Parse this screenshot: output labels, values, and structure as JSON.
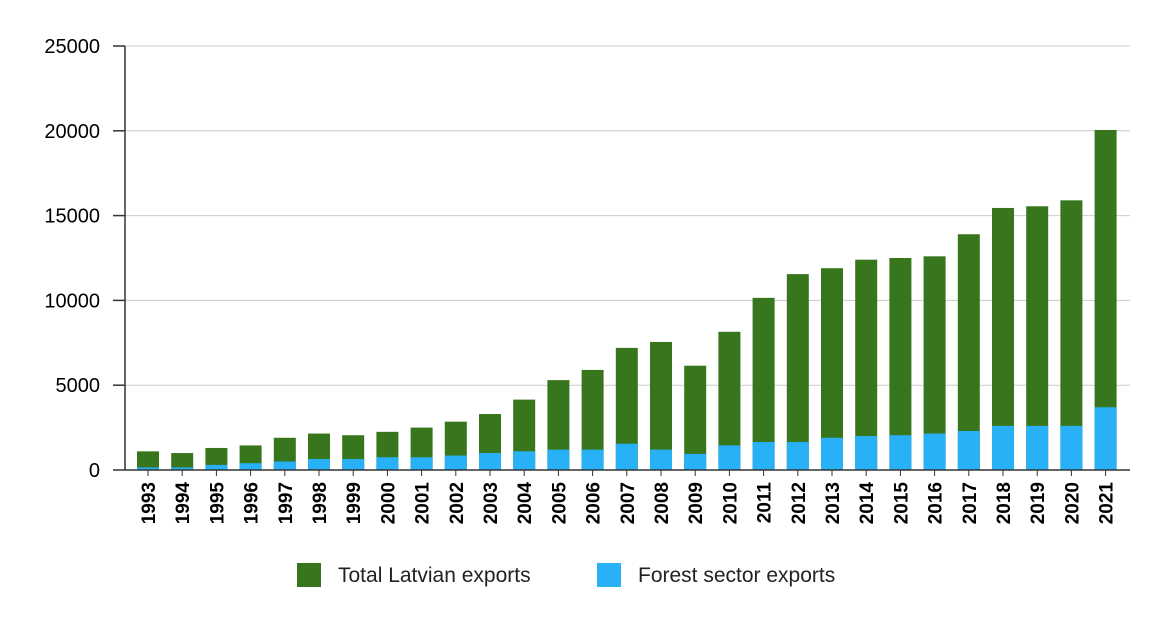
{
  "chart_data": {
    "type": "bar",
    "stacked": true,
    "title": "",
    "xlabel": "",
    "ylabel": "",
    "ylim": [
      0,
      25000
    ],
    "yticks": [
      0,
      5000,
      10000,
      15000,
      20000,
      25000
    ],
    "grid": true,
    "legend": "bottom",
    "categories": [
      "1993",
      "1994",
      "1995",
      "1996",
      "1997",
      "1998",
      "1999",
      "2000",
      "2001",
      "2002",
      "2003",
      "2004",
      "2005",
      "2006",
      "2007",
      "2008",
      "2009",
      "2010",
      "2011",
      "2012",
      "2013",
      "2014",
      "2015",
      "2016",
      "2017",
      "2018",
      "2019",
      "2020",
      "2021"
    ],
    "series": [
      {
        "name": "Total Latvian exports",
        "color": "#38761d",
        "values": [
          1100,
          1000,
          1300,
          1450,
          1900,
          2150,
          2050,
          2250,
          2500,
          2850,
          3300,
          4150,
          5300,
          5900,
          7200,
          7550,
          6150,
          8150,
          10150,
          11550,
          11900,
          12400,
          12500,
          12600,
          13900,
          15450,
          15550,
          15900,
          20050
        ]
      },
      {
        "name": "Forest sector exports",
        "color": "#29b1f7",
        "values": [
          150,
          150,
          300,
          400,
          500,
          650,
          650,
          750,
          750,
          850,
          1000,
          1100,
          1200,
          1200,
          1550,
          1200,
          950,
          1450,
          1650,
          1650,
          1900,
          2000,
          2050,
          2150,
          2300,
          2600,
          2600,
          2600,
          3700
        ]
      }
    ]
  }
}
